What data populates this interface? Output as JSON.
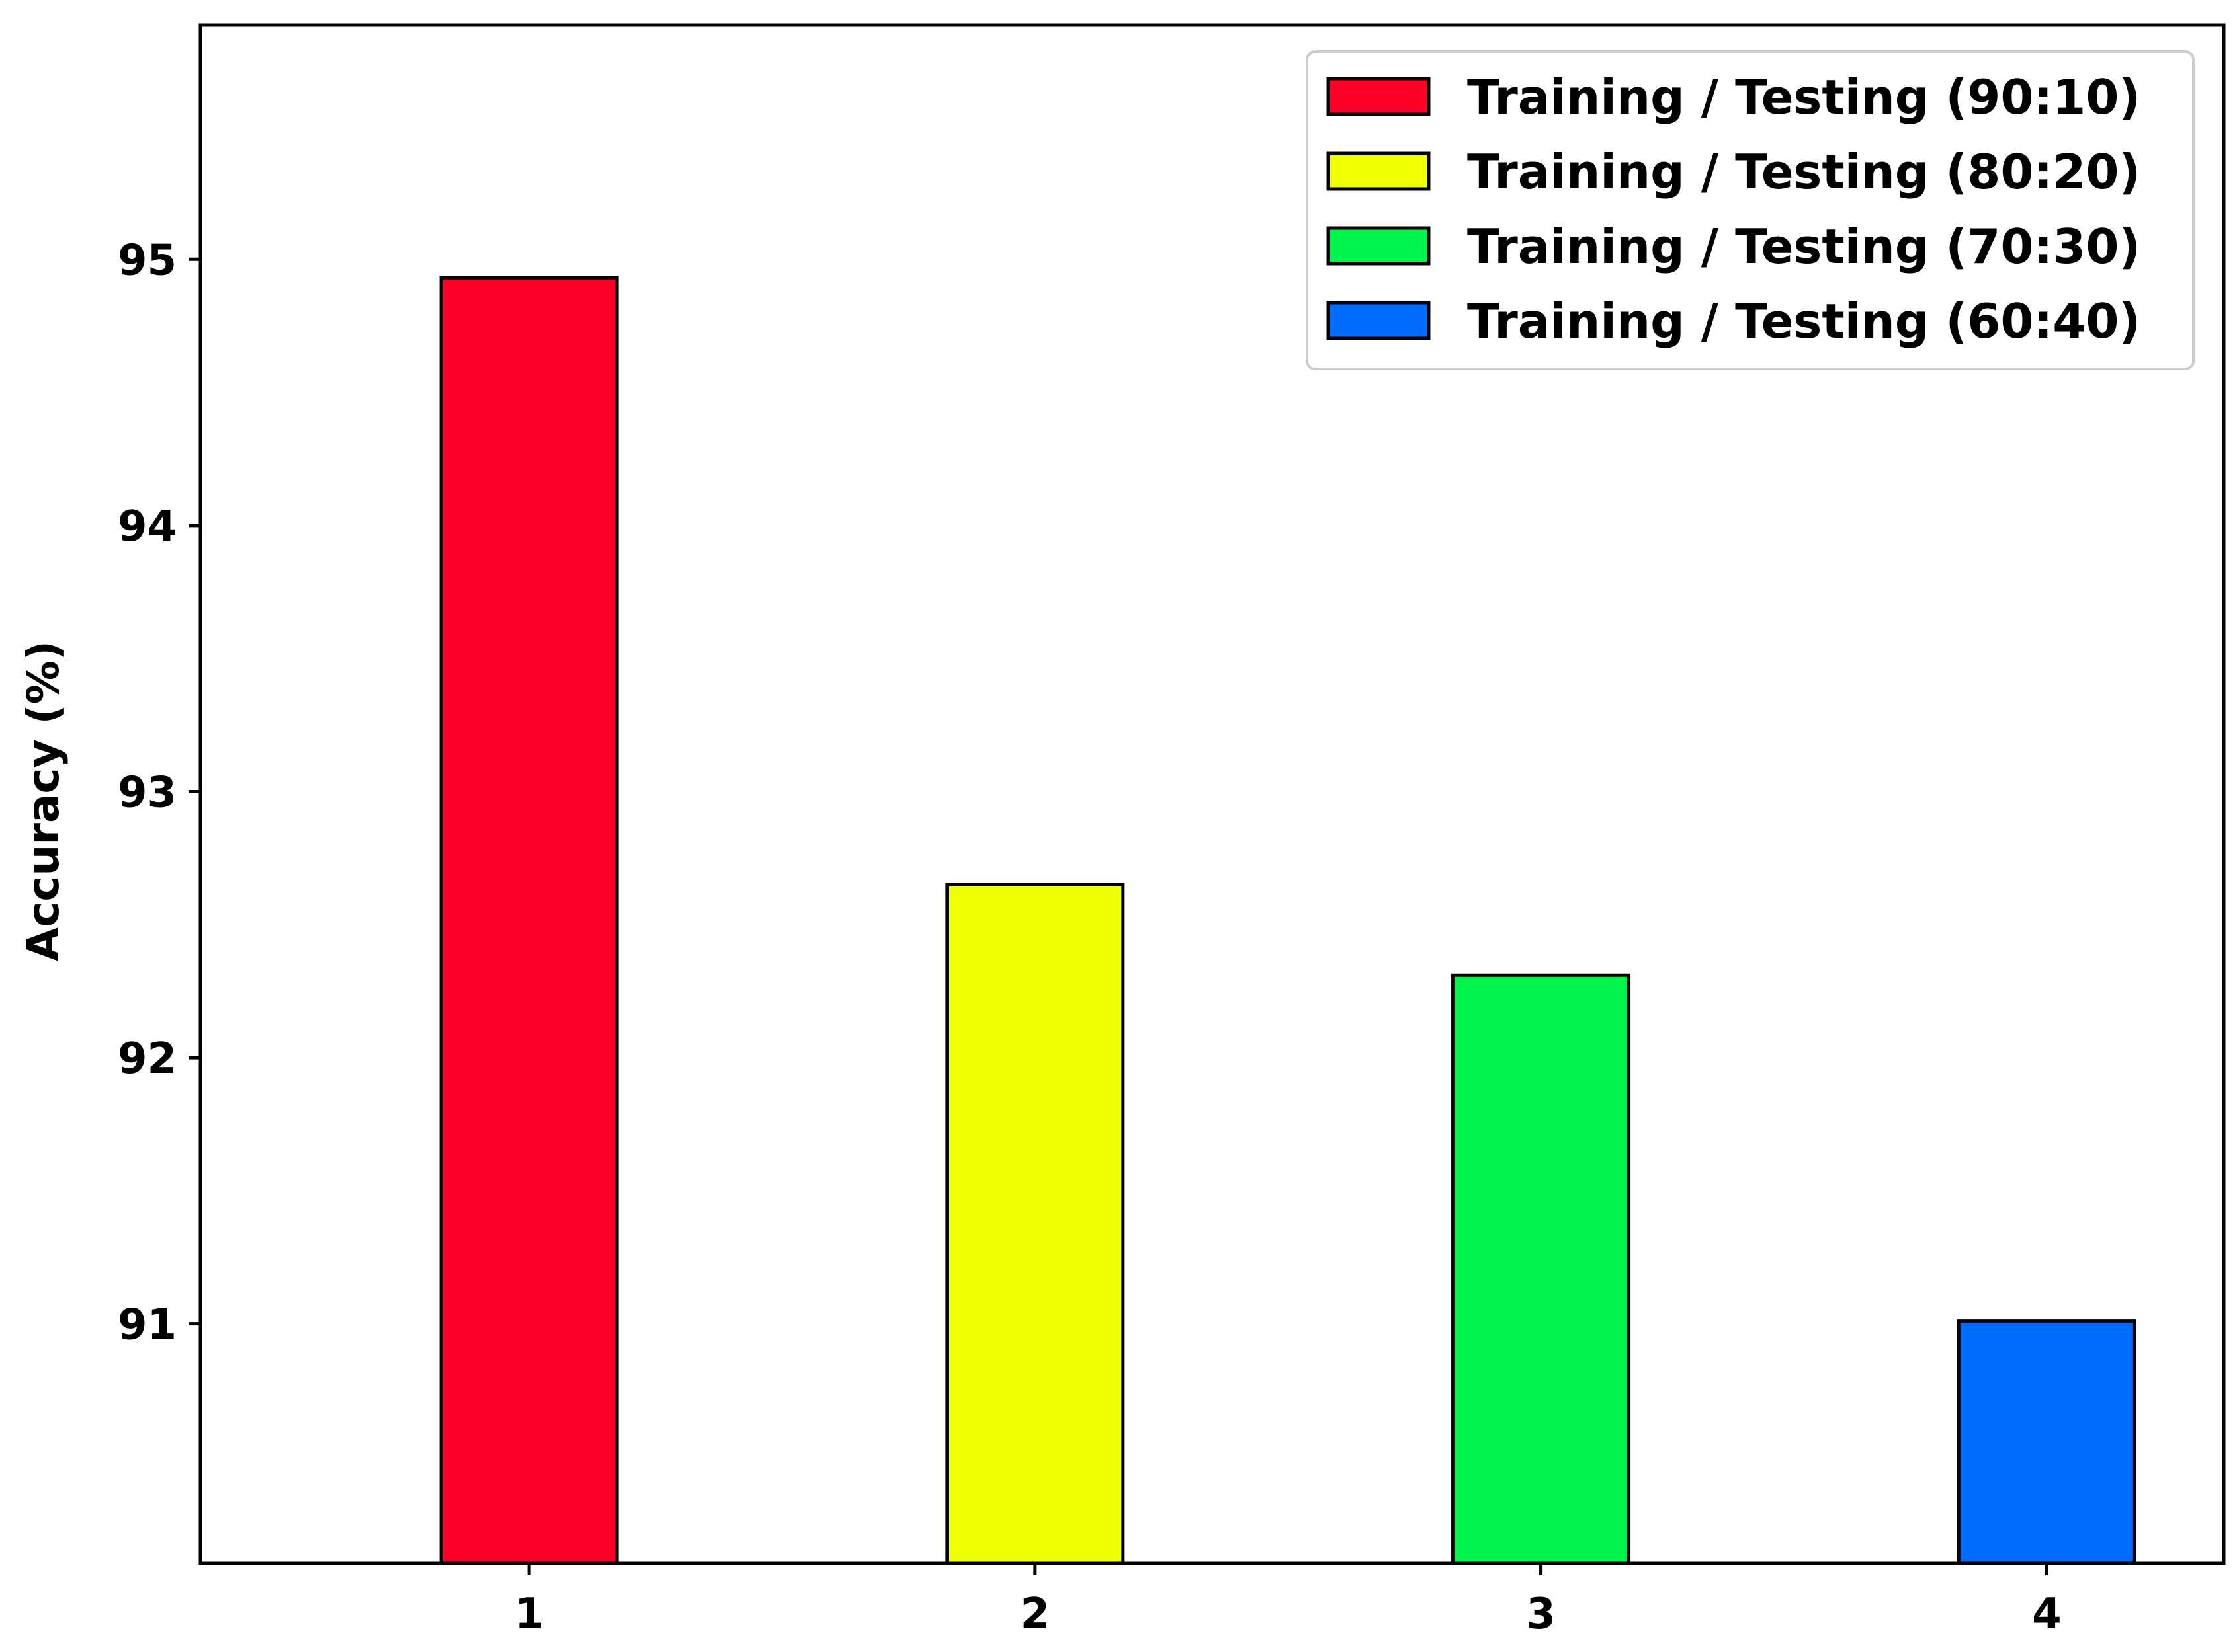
{
  "chart_data": {
    "type": "bar",
    "categories": [
      "1",
      "2",
      "3",
      "4"
    ],
    "series": [
      {
        "name": "Training / Testing (90:10)",
        "category": "1",
        "value": 94.93,
        "color": "#ff0026"
      },
      {
        "name": "Training / Testing (80:20)",
        "category": "2",
        "value": 92.65,
        "color": "#eeff00"
      },
      {
        "name": "Training / Testing (70:30)",
        "category": "3",
        "value": 92.31,
        "color": "#00f54c"
      },
      {
        "name": "Training / Testing (60:40)",
        "category": "4",
        "value": 91.01,
        "color": "#006cff"
      }
    ],
    "xlabel": "",
    "ylabel": "Accuracy (%)",
    "ylim": [
      90.1,
      95.88
    ],
    "xlim": [
      0.35,
      4.35
    ],
    "yticks": [
      91,
      92,
      93,
      94,
      95
    ],
    "legend_position": "top-right",
    "grid": false
  }
}
